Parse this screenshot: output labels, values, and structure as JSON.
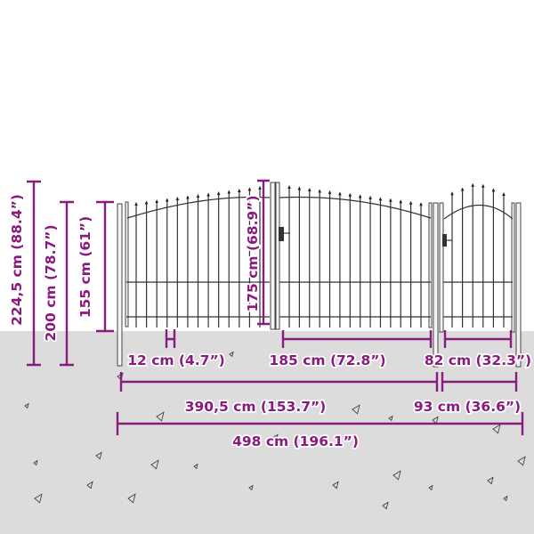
{
  "diagram": {
    "accent_color": "#8b1a7e",
    "ground_color": "#dcdcdc",
    "dimensions": {
      "total_height": "224,5 cm (88.4”)",
      "post_height": "200 cm (78.7”)",
      "panel_height": "155 cm (61”)",
      "gate_height": "175 cm (68.9”)",
      "ground_gap": "12 cm (4.7”)",
      "double_gate_width": "185 cm (72.8”)",
      "single_gate_width": "82 cm (32.3”)",
      "double_section_width": "390,5 cm (153.7”)",
      "single_section_width": "93 cm (36.6”)",
      "total_width": "498 cm (196.1”)"
    }
  }
}
